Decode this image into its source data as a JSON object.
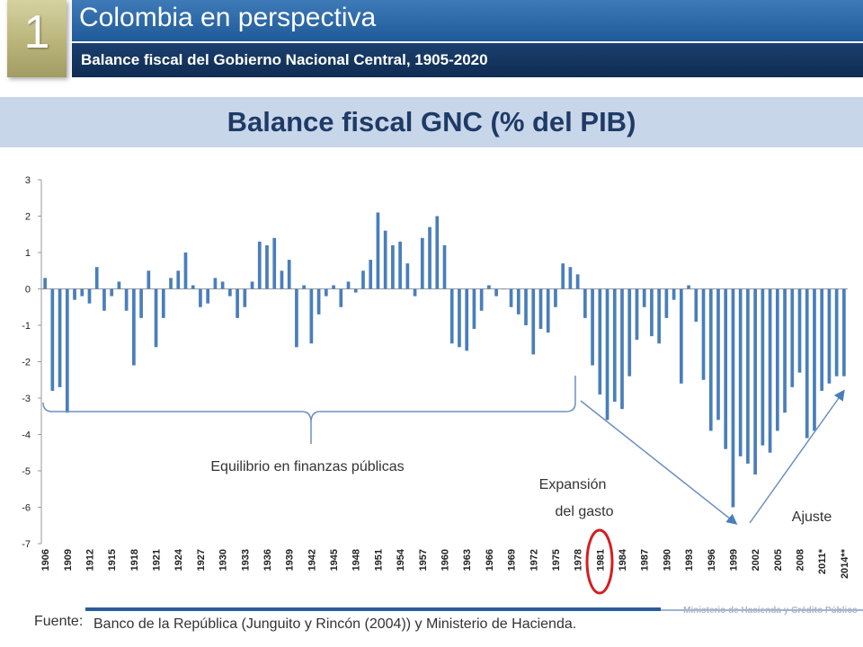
{
  "header": {
    "number": "1",
    "title": "Colombia en perspectiva",
    "subtitle": "Balance fiscal del Gobierno Nacional Central, 1905-2020"
  },
  "colors": {
    "bar": "#4a7ebb",
    "accent": "#1f5a98",
    "circle": "#d21f1f",
    "band": "#c8d6ea"
  },
  "annotations": {
    "equilibrio": "Equilibrio en finanzas públicas",
    "expansion_1": "Expansión",
    "expansion_2": "del gasto",
    "ajuste": "Ajuste"
  },
  "footer": {
    "source_label": "Fuente:",
    "source_text": "Banco de la República (Junguito y Rincón (2004)) y Ministerio de Hacienda.",
    "ministry": "Ministerio de Hacienda y Crédito Público"
  },
  "chart_data": {
    "type": "bar",
    "title": "Balance fiscal GNC  (% del PIB)",
    "xlabel": "",
    "ylabel": "",
    "ylim": [
      -7,
      3
    ],
    "yticks": [
      3,
      2,
      1,
      0,
      -1,
      -2,
      -3,
      -4,
      -5,
      -6,
      -7
    ],
    "grid": false,
    "highlighted_tick": "1981",
    "tick_labels": [
      "1906",
      "1909",
      "1912",
      "1915",
      "1918",
      "1921",
      "1924",
      "1927",
      "1930",
      "1933",
      "1936",
      "1939",
      "1942",
      "1945",
      "1948",
      "1951",
      "1954",
      "1957",
      "1960",
      "1963",
      "1966",
      "1969",
      "1972",
      "1975",
      "1978",
      "1981",
      "1984",
      "1987",
      "1990",
      "1993",
      "1996",
      "1999",
      "2002",
      "2005",
      "2008",
      "2011*",
      "2014**"
    ],
    "categories": [
      "1906",
      "1907",
      "1908",
      "1909",
      "1910",
      "1911",
      "1912",
      "1913",
      "1914",
      "1915",
      "1916",
      "1917",
      "1918",
      "1919",
      "1920",
      "1921",
      "1922",
      "1923",
      "1924",
      "1925",
      "1926",
      "1927",
      "1928",
      "1929",
      "1930",
      "1931",
      "1932",
      "1933",
      "1934",
      "1935",
      "1936",
      "1937",
      "1938",
      "1939",
      "1940",
      "1941",
      "1942",
      "1943",
      "1944",
      "1945",
      "1946",
      "1947",
      "1948",
      "1949",
      "1950",
      "1951",
      "1952",
      "1953",
      "1954",
      "1955",
      "1956",
      "1957",
      "1958",
      "1959",
      "1960",
      "1961",
      "1962",
      "1963",
      "1964",
      "1965",
      "1966",
      "1967",
      "1968",
      "1969",
      "1970",
      "1971",
      "1972",
      "1973",
      "1974",
      "1975",
      "1976",
      "1977",
      "1978",
      "1979",
      "1980",
      "1981",
      "1982",
      "1983",
      "1984",
      "1985",
      "1986",
      "1987",
      "1988",
      "1989",
      "1990",
      "1991",
      "1992",
      "1993",
      "1994",
      "1995",
      "1996",
      "1997",
      "1998",
      "1999",
      "2000",
      "2001",
      "2002",
      "2003",
      "2004",
      "2005",
      "2006",
      "2007",
      "2008",
      "2009",
      "2010",
      "2011*",
      "2012",
      "2013",
      "2014**"
    ],
    "values": [
      0.3,
      -2.8,
      -2.7,
      -3.4,
      -0.3,
      -0.2,
      -0.4,
      0.6,
      -0.6,
      -0.2,
      0.2,
      -0.6,
      -2.1,
      -0.8,
      0.5,
      -1.6,
      -0.8,
      0.3,
      0.5,
      1.0,
      0.1,
      -0.5,
      -0.4,
      0.3,
      0.2,
      -0.2,
      -0.8,
      -0.5,
      0.2,
      1.3,
      1.2,
      1.4,
      0.5,
      0.8,
      -1.6,
      0.1,
      -1.5,
      -0.7,
      -0.2,
      0.1,
      -0.5,
      0.2,
      -0.1,
      0.5,
      0.8,
      2.1,
      1.6,
      1.2,
      1.3,
      0.7,
      -0.2,
      1.4,
      1.7,
      2.0,
      1.2,
      -1.5,
      -1.6,
      -1.7,
      -1.1,
      -0.6,
      0.1,
      -0.2,
      0.0,
      -0.5,
      -0.7,
      -1.0,
      -1.8,
      -1.1,
      -1.2,
      -0.5,
      0.7,
      0.6,
      0.4,
      -0.8,
      -2.1,
      -2.9,
      -3.6,
      -3.1,
      -3.3,
      -2.4,
      -1.4,
      -0.5,
      -1.3,
      -1.5,
      -0.8,
      -0.3,
      -2.6,
      0.1,
      -0.9,
      -2.5,
      -3.9,
      -3.6,
      -4.4,
      -6.0,
      -4.6,
      -4.8,
      -5.1,
      -4.3,
      -4.5,
      -3.9,
      -3.4,
      -2.7,
      -2.3,
      -4.1,
      -3.9,
      -2.8,
      -2.6,
      -2.4,
      -2.4
    ]
  }
}
